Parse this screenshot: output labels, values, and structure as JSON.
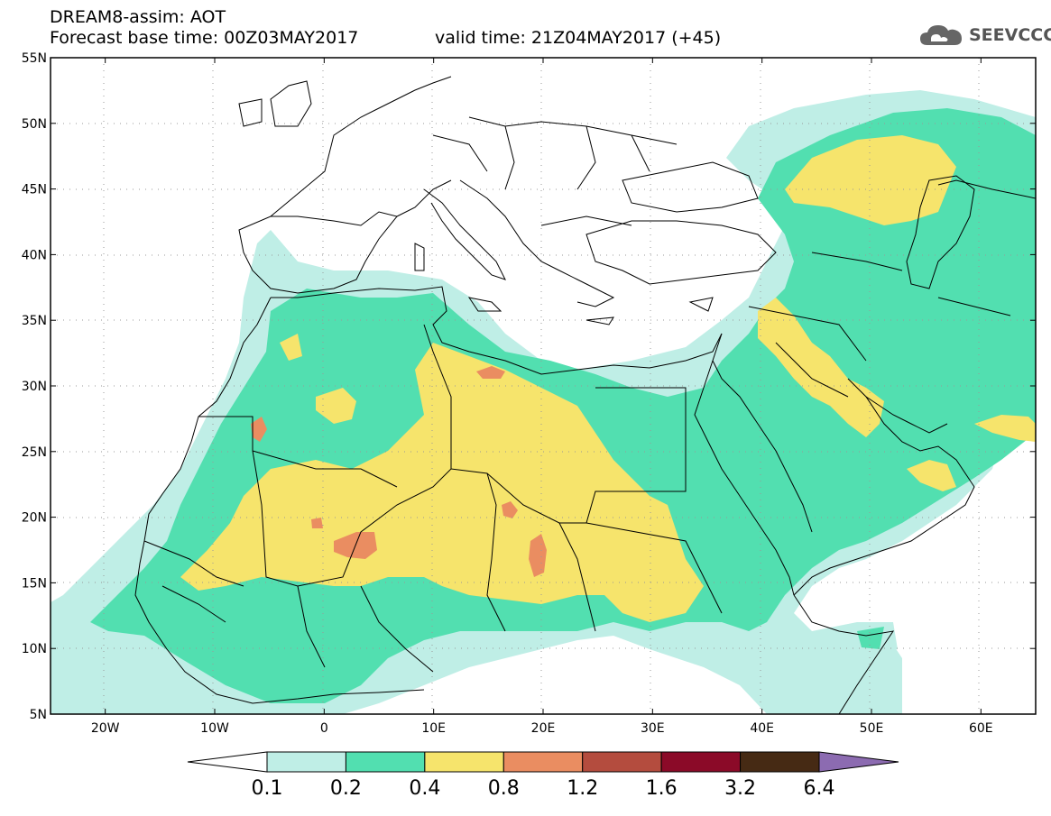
{
  "header": {
    "title": "DREAM8-assim: AOT",
    "base_time": "Forecast base time: 00Z03MAY2017",
    "valid_time": "valid time: 21Z04MAY2017 (+45)"
  },
  "logo": {
    "text": "SEEVCCC",
    "icon": "cloud-icon"
  },
  "map": {
    "lon_range": [
      -25,
      65
    ],
    "lat_range": [
      5,
      55
    ],
    "lon_ticks": [
      {
        "lon": -20,
        "label": "20W"
      },
      {
        "lon": -10,
        "label": "10W"
      },
      {
        "lon": 0,
        "label": "0"
      },
      {
        "lon": 10,
        "label": "10E"
      },
      {
        "lon": 20,
        "label": "20E"
      },
      {
        "lon": 30,
        "label": "30E"
      },
      {
        "lon": 40,
        "label": "40E"
      },
      {
        "lon": 50,
        "label": "50E"
      },
      {
        "lon": 60,
        "label": "60E"
      }
    ],
    "lat_ticks": [
      {
        "lat": 5,
        "label": "5N"
      },
      {
        "lat": 10,
        "label": "10N"
      },
      {
        "lat": 15,
        "label": "15N"
      },
      {
        "lat": 20,
        "label": "20N"
      },
      {
        "lat": 25,
        "label": "25N"
      },
      {
        "lat": 30,
        "label": "30N"
      },
      {
        "lat": 35,
        "label": "35N"
      },
      {
        "lat": 40,
        "label": "40N"
      },
      {
        "lat": 45,
        "label": "45N"
      },
      {
        "lat": 50,
        "label": "50N"
      },
      {
        "lat": 55,
        "label": "55N"
      }
    ],
    "gridlines": "dotted",
    "colors": {
      "c01": "#bfeee6",
      "c02": "#52dfb0",
      "c04": "#f6e46c",
      "c08": "#ea8d61",
      "c12": "#b44c3e",
      "c16": "#8b0a28",
      "c32": "#462a14",
      "c64": "#8c6bb1"
    }
  },
  "colorbar": {
    "labels": [
      "0.1",
      "0.2",
      "0.4",
      "0.8",
      "1.2",
      "1.6",
      "3.2",
      "6.4"
    ],
    "colors": [
      "#ffffff",
      "#bfeee6",
      "#52dfb0",
      "#f6e46c",
      "#ea8d61",
      "#b44c3e",
      "#8b0a28",
      "#462a14",
      "#8c6bb1"
    ]
  }
}
